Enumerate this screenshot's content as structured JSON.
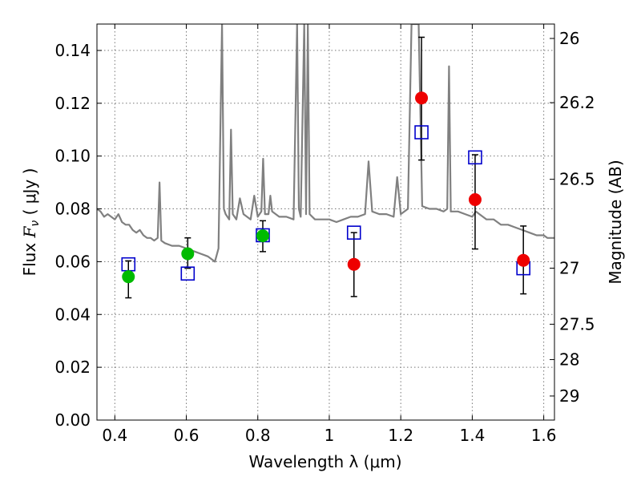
{
  "chart_data": {
    "type": "scatter",
    "xlabel": "Wavelength  λ (μm)",
    "ylabel_text": "Flux  ",
    "ylabel_math": "F",
    "ylabel_sub": "ν",
    "ylabel_unit": "  ( μJy )",
    "ylabel_right": "Magnitude (AB)",
    "xlim": [
      0.35,
      1.63
    ],
    "ylim": [
      0.0,
      0.15
    ],
    "grid": true,
    "x_ticks": [
      {
        "value": 0.4,
        "label": "0.4"
      },
      {
        "value": 0.6,
        "label": "0.6"
      },
      {
        "value": 0.8,
        "label": "0.8"
      },
      {
        "value": 1.0,
        "label": "1"
      },
      {
        "value": 1.2,
        "label": "1.2"
      },
      {
        "value": 1.4,
        "label": "1.4"
      },
      {
        "value": 1.6,
        "label": "1.6"
      }
    ],
    "y_ticks": [
      {
        "value": 0.0,
        "label": "0.00"
      },
      {
        "value": 0.02,
        "label": "0.02"
      },
      {
        "value": 0.04,
        "label": "0.04"
      },
      {
        "value": 0.06,
        "label": "0.06"
      },
      {
        "value": 0.08,
        "label": "0.08"
      },
      {
        "value": 0.1,
        "label": "0.10"
      },
      {
        "value": 0.12,
        "label": "0.12"
      },
      {
        "value": 0.14,
        "label": "0.14"
      }
    ],
    "right_ticks": [
      {
        "mag": 26,
        "label": "26"
      },
      {
        "mag": 26.2,
        "label": "26.2"
      },
      {
        "mag": 26.5,
        "label": "26.5"
      },
      {
        "mag": 27,
        "label": "27"
      },
      {
        "mag": 27.5,
        "label": "27.5"
      },
      {
        "mag": 28,
        "label": "28"
      },
      {
        "mag": 29,
        "label": "29"
      }
    ],
    "colors": {
      "spectrum": "#808080",
      "green": "#00bb00",
      "red": "#ee0000",
      "model": "#0000cc",
      "errorbar": "#000000",
      "grid": "#777777"
    },
    "spectrum": [
      [
        0.35,
        0.08
      ],
      [
        0.36,
        0.079
      ],
      [
        0.37,
        0.077
      ],
      [
        0.38,
        0.078
      ],
      [
        0.39,
        0.077
      ],
      [
        0.4,
        0.076
      ],
      [
        0.41,
        0.078
      ],
      [
        0.42,
        0.075
      ],
      [
        0.43,
        0.074
      ],
      [
        0.44,
        0.074
      ],
      [
        0.45,
        0.072
      ],
      [
        0.46,
        0.071
      ],
      [
        0.47,
        0.072
      ],
      [
        0.48,
        0.07
      ],
      [
        0.49,
        0.069
      ],
      [
        0.5,
        0.069
      ],
      [
        0.51,
        0.068
      ],
      [
        0.52,
        0.069
      ],
      [
        0.525,
        0.09
      ],
      [
        0.53,
        0.068
      ],
      [
        0.54,
        0.067
      ],
      [
        0.56,
        0.066
      ],
      [
        0.58,
        0.066
      ],
      [
        0.6,
        0.065
      ],
      [
        0.62,
        0.064
      ],
      [
        0.64,
        0.063
      ],
      [
        0.66,
        0.062
      ],
      [
        0.68,
        0.06
      ],
      [
        0.69,
        0.065
      ],
      [
        0.7,
        0.15
      ],
      [
        0.705,
        0.08
      ],
      [
        0.71,
        0.078
      ],
      [
        0.72,
        0.076
      ],
      [
        0.725,
        0.11
      ],
      [
        0.73,
        0.078
      ],
      [
        0.74,
        0.076
      ],
      [
        0.75,
        0.084
      ],
      [
        0.76,
        0.078
      ],
      [
        0.78,
        0.076
      ],
      [
        0.79,
        0.085
      ],
      [
        0.8,
        0.077
      ],
      [
        0.81,
        0.079
      ],
      [
        0.815,
        0.099
      ],
      [
        0.82,
        0.078
      ],
      [
        0.83,
        0.078
      ],
      [
        0.835,
        0.085
      ],
      [
        0.84,
        0.079
      ],
      [
        0.86,
        0.077
      ],
      [
        0.88,
        0.077
      ],
      [
        0.9,
        0.076
      ],
      [
        0.91,
        0.15
      ],
      [
        0.915,
        0.08
      ],
      [
        0.92,
        0.077
      ],
      [
        0.93,
        0.15
      ],
      [
        0.935,
        0.078
      ],
      [
        0.94,
        0.15
      ],
      [
        0.945,
        0.078
      ],
      [
        0.96,
        0.076
      ],
      [
        0.98,
        0.076
      ],
      [
        1.0,
        0.076
      ],
      [
        1.02,
        0.075
      ],
      [
        1.04,
        0.076
      ],
      [
        1.06,
        0.077
      ],
      [
        1.08,
        0.077
      ],
      [
        1.1,
        0.078
      ],
      [
        1.11,
        0.098
      ],
      [
        1.12,
        0.079
      ],
      [
        1.14,
        0.078
      ],
      [
        1.16,
        0.078
      ],
      [
        1.18,
        0.077
      ],
      [
        1.19,
        0.092
      ],
      [
        1.2,
        0.078
      ],
      [
        1.22,
        0.08
      ],
      [
        1.23,
        0.15
      ],
      [
        1.25,
        0.15
      ],
      [
        1.26,
        0.081
      ],
      [
        1.28,
        0.08
      ],
      [
        1.3,
        0.08
      ],
      [
        1.32,
        0.079
      ],
      [
        1.33,
        0.08
      ],
      [
        1.335,
        0.134
      ],
      [
        1.34,
        0.079
      ],
      [
        1.36,
        0.079
      ],
      [
        1.38,
        0.078
      ],
      [
        1.4,
        0.077
      ],
      [
        1.41,
        0.079
      ],
      [
        1.42,
        0.078
      ],
      [
        1.44,
        0.076
      ],
      [
        1.46,
        0.076
      ],
      [
        1.48,
        0.074
      ],
      [
        1.5,
        0.074
      ],
      [
        1.52,
        0.073
      ],
      [
        1.54,
        0.072
      ],
      [
        1.56,
        0.071
      ],
      [
        1.58,
        0.07
      ],
      [
        1.6,
        0.07
      ],
      [
        1.61,
        0.069
      ],
      [
        1.63,
        0.069
      ]
    ],
    "green_points": [
      {
        "x": 0.438,
        "y": 0.0543,
        "yerr_low": 0.0463,
        "yerr_high": 0.0603
      },
      {
        "x": 0.604,
        "y": 0.063,
        "yerr_low": 0.0575,
        "yerr_high": 0.069
      },
      {
        "x": 0.814,
        "y": 0.0698,
        "yerr_low": 0.0638,
        "yerr_high": 0.0755
      }
    ],
    "red_points": [
      {
        "x": 1.069,
        "y": 0.059,
        "yerr_low": 0.0468,
        "yerr_high": 0.071
      },
      {
        "x": 1.258,
        "y": 0.122,
        "yerr_low": 0.0985,
        "yerr_high": 0.145
      },
      {
        "x": 1.408,
        "y": 0.0835,
        "yerr_low": 0.0648,
        "yerr_high": 0.1005
      },
      {
        "x": 1.543,
        "y": 0.0605,
        "yerr_low": 0.0478,
        "yerr_high": 0.0735
      }
    ],
    "model_points": [
      {
        "x": 0.438,
        "y": 0.059
      },
      {
        "x": 0.604,
        "y": 0.0555
      },
      {
        "x": 0.814,
        "y": 0.07
      },
      {
        "x": 1.069,
        "y": 0.071
      },
      {
        "x": 1.258,
        "y": 0.109
      },
      {
        "x": 1.408,
        "y": 0.0995
      },
      {
        "x": 1.543,
        "y": 0.0575
      }
    ]
  }
}
